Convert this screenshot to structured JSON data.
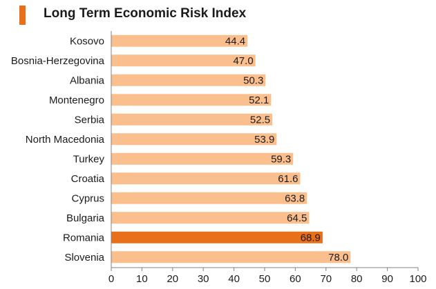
{
  "chart_data": {
    "type": "bar",
    "orientation": "horizontal",
    "title": "Long Term Economic Risk Index",
    "categories": [
      "Kosovo",
      "Bosnia-Herzegovina",
      "Albania",
      "Montenegro",
      "Serbia",
      "North Macedonia",
      "Turkey",
      "Croatia",
      "Cyprus",
      "Bulgaria",
      "Romania",
      "Slovenia"
    ],
    "values": [
      44.4,
      47.0,
      50.3,
      52.1,
      52.5,
      53.9,
      59.3,
      61.6,
      63.8,
      64.5,
      68.9,
      78.0
    ],
    "value_labels": [
      "44.4",
      "47.0",
      "50.3",
      "52.1",
      "52.5",
      "53.9",
      "59.3",
      "61.6",
      "63.8",
      "64.5",
      "68.9",
      "78.0"
    ],
    "highlight": "Romania",
    "xlim": [
      0,
      100
    ],
    "xticks": [
      "0",
      "10",
      "20",
      "30",
      "40",
      "50",
      "60",
      "70",
      "80",
      "90",
      "100"
    ],
    "xlabel": "",
    "ylabel": "",
    "grid": false,
    "colors": {
      "bar": "#fbbf8e",
      "highlight": "#e8701a",
      "accent": "#e8701a",
      "axis": "#808080"
    }
  }
}
